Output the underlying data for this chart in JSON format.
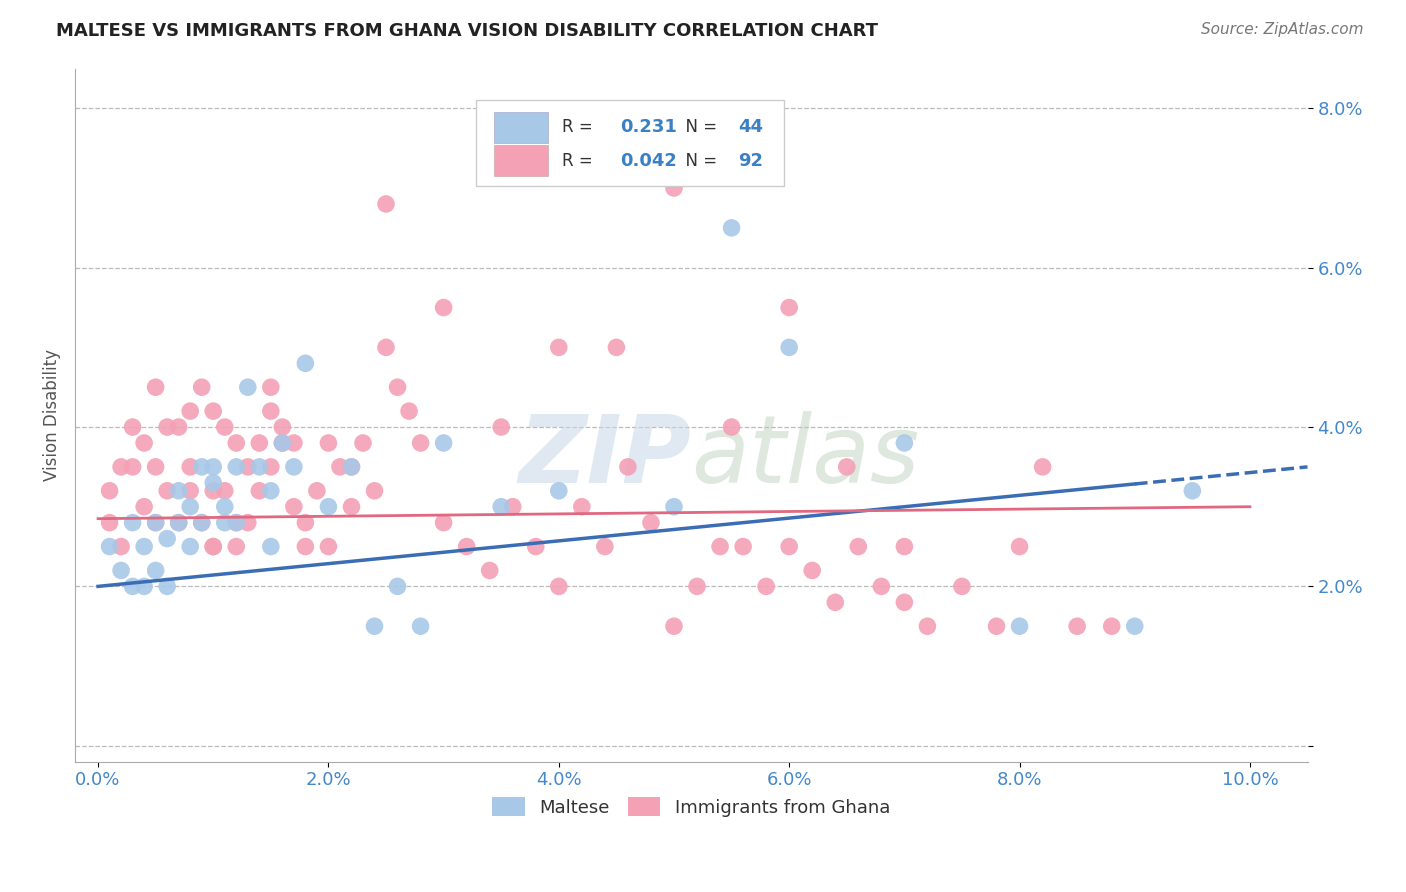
{
  "title": "MALTESE VS IMMIGRANTS FROM GHANA VISION DISABILITY CORRELATION CHART",
  "source": "Source: ZipAtlas.com",
  "ylabel": "Vision Disability",
  "xlim": [
    -0.2,
    10.5
  ],
  "ylim": [
    -0.2,
    8.5
  ],
  "xticks": [
    0,
    2,
    4,
    6,
    8,
    10
  ],
  "yticks": [
    0,
    2,
    4,
    6,
    8
  ],
  "ytick_labels": [
    "",
    "2.0%",
    "4.0%",
    "6.0%",
    "8.0%"
  ],
  "xtick_labels": [
    "0.0%",
    "2.0%",
    "4.0%",
    "6.0%",
    "8.0%",
    "10.0%"
  ],
  "blue_color": "#A8C8E8",
  "pink_color": "#F4A0B5",
  "blue_line_color": "#3B6DB5",
  "pink_line_color": "#E06880",
  "legend1_R": "0.231",
  "legend1_N": "44",
  "legend2_R": "0.042",
  "legend2_N": "92",
  "legend_label1": "Maltese",
  "legend_label2": "Immigrants from Ghana",
  "watermark_zip": "ZIP",
  "watermark_atlas": "atlas",
  "blue_scatter_x": [
    0.1,
    0.2,
    0.3,
    0.3,
    0.4,
    0.4,
    0.5,
    0.5,
    0.6,
    0.6,
    0.7,
    0.7,
    0.8,
    0.8,
    0.9,
    0.9,
    1.0,
    1.0,
    1.1,
    1.1,
    1.2,
    1.2,
    1.3,
    1.4,
    1.5,
    1.5,
    1.6,
    1.7,
    1.8,
    2.0,
    2.2,
    2.4,
    2.6,
    2.8,
    3.0,
    3.5,
    4.0,
    5.0,
    5.5,
    6.0,
    7.0,
    8.0,
    9.0,
    9.5
  ],
  "blue_scatter_y": [
    2.5,
    2.2,
    2.8,
    2.0,
    2.5,
    2.0,
    2.8,
    2.2,
    2.6,
    2.0,
    3.2,
    2.8,
    3.0,
    2.5,
    3.5,
    2.8,
    3.5,
    3.3,
    3.0,
    2.8,
    3.5,
    2.8,
    4.5,
    3.5,
    3.2,
    2.5,
    3.8,
    3.5,
    4.8,
    3.0,
    3.5,
    1.5,
    2.0,
    1.5,
    3.8,
    3.0,
    3.2,
    3.0,
    6.5,
    5.0,
    3.8,
    1.5,
    1.5,
    3.2
  ],
  "pink_scatter_x": [
    0.1,
    0.1,
    0.2,
    0.2,
    0.3,
    0.3,
    0.4,
    0.4,
    0.5,
    0.5,
    0.5,
    0.6,
    0.6,
    0.7,
    0.7,
    0.8,
    0.8,
    0.9,
    0.9,
    1.0,
    1.0,
    1.0,
    1.1,
    1.1,
    1.2,
    1.2,
    1.3,
    1.3,
    1.4,
    1.4,
    1.5,
    1.5,
    1.6,
    1.6,
    1.7,
    1.7,
    1.8,
    1.9,
    2.0,
    2.1,
    2.2,
    2.3,
    2.4,
    2.5,
    2.6,
    2.7,
    2.8,
    3.0,
    3.2,
    3.4,
    3.6,
    3.8,
    4.0,
    4.2,
    4.4,
    4.6,
    4.8,
    5.0,
    5.2,
    5.4,
    5.6,
    5.8,
    6.0,
    6.2,
    6.4,
    6.6,
    6.8,
    7.0,
    7.2,
    7.5,
    7.8,
    8.0,
    8.2,
    8.5,
    8.8,
    5.0,
    3.0,
    2.5,
    4.0,
    6.0,
    3.5,
    4.5,
    5.5,
    6.5,
    7.0,
    2.0,
    1.5,
    1.0,
    0.8,
    1.2,
    1.8,
    2.2
  ],
  "pink_scatter_y": [
    2.8,
    3.2,
    2.5,
    3.5,
    3.5,
    4.0,
    3.0,
    3.8,
    3.5,
    4.5,
    2.8,
    4.0,
    3.2,
    4.0,
    2.8,
    4.2,
    3.2,
    4.5,
    2.8,
    4.2,
    3.2,
    2.5,
    4.0,
    3.2,
    3.8,
    2.5,
    3.5,
    2.8,
    3.2,
    3.8,
    4.2,
    3.5,
    3.8,
    4.0,
    3.0,
    3.8,
    2.8,
    3.2,
    3.8,
    3.5,
    3.5,
    3.8,
    3.2,
    5.0,
    4.5,
    4.2,
    3.8,
    2.8,
    2.5,
    2.2,
    3.0,
    2.5,
    2.0,
    3.0,
    2.5,
    3.5,
    2.8,
    1.5,
    2.0,
    2.5,
    2.5,
    2.0,
    2.5,
    2.2,
    1.8,
    2.5,
    2.0,
    1.8,
    1.5,
    2.0,
    1.5,
    2.5,
    3.5,
    1.5,
    1.5,
    7.0,
    5.5,
    6.8,
    5.0,
    5.5,
    4.0,
    5.0,
    4.0,
    3.5,
    2.5,
    2.5,
    4.5,
    2.5,
    3.5,
    2.8,
    2.5,
    3.0
  ],
  "blue_trend_x0": 0,
  "blue_trend_y0": 2.0,
  "blue_trend_x1": 10.5,
  "blue_trend_y1": 3.5,
  "pink_trend_x0": 0,
  "pink_trend_y0": 2.85,
  "pink_trend_x1": 10.0,
  "pink_trend_y1": 3.0
}
